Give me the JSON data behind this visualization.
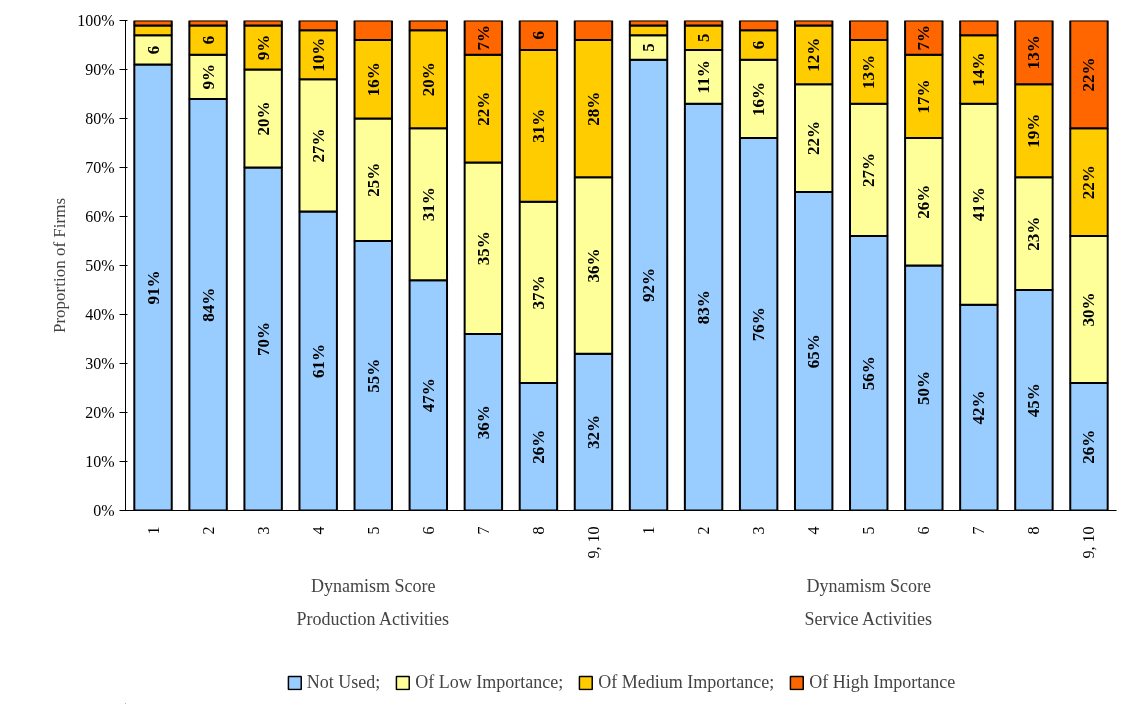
{
  "chart_data": {
    "type": "bar",
    "stacked": true,
    "ylabel": "Proportion of Firms",
    "legend": "bottom",
    "categories": [
      "1",
      "2",
      "3",
      "4",
      "5",
      "6",
      "7",
      "8",
      "9, 10",
      "1",
      "2",
      "3",
      "4",
      "5",
      "6",
      "7",
      "8",
      "9, 10"
    ],
    "annotations": [
      "Dynamism Score",
      "Production Activities",
      "Dynamism Score",
      "Service Activities"
    ],
    "ylim": [
      0,
      100
    ],
    "yticks": [
      {
        "value": 0,
        "label": "0%"
      },
      {
        "value": 10,
        "label": "10%"
      },
      {
        "value": 20,
        "label": "20%"
      },
      {
        "value": 30,
        "label": "30%"
      },
      {
        "value": 40,
        "label": "40%"
      },
      {
        "value": 50,
        "label": "50%"
      },
      {
        "value": 60,
        "label": "60%"
      },
      {
        "value": 70,
        "label": "70%"
      },
      {
        "value": 80,
        "label": "80%"
      },
      {
        "value": 90,
        "label": "90%"
      },
      {
        "value": 100,
        "label": "100%"
      }
    ],
    "series": [
      {
        "name": "Not Used;",
        "color": "#99ccff",
        "values": [
          91,
          84,
          70,
          61,
          55,
          47,
          36,
          26,
          32,
          92,
          83,
          76,
          65,
          56,
          50,
          42,
          45,
          26
        ],
        "value_labels": [
          "91%",
          "84%",
          "70%",
          "61%",
          "55%",
          "47%",
          "36%",
          "26%",
          "32%",
          "92%",
          "83%",
          "76%",
          "65%",
          "56%",
          "50%",
          "42%",
          "45%",
          "26%"
        ]
      },
      {
        "name": "Of Low Importance;",
        "color": "#ffff99",
        "values": [
          6,
          9,
          20,
          27,
          25,
          31,
          35,
          37,
          36,
          5,
          11,
          16,
          22,
          27,
          26,
          41,
          23,
          30
        ],
        "value_labels": [
          "6",
          "9%",
          "20%",
          "27%",
          "25%",
          "31%",
          "35%",
          "37%",
          "36%",
          "5",
          "11%",
          "16%",
          "22%",
          "27%",
          "26%",
          "41%",
          "23%",
          "30%"
        ]
      },
      {
        "name": "Of Medium Importance;",
        "color": "#ffcc00",
        "values": [
          2,
          6,
          9,
          10,
          16,
          20,
          22,
          31,
          28,
          2,
          5,
          6,
          12,
          13,
          17,
          14,
          19,
          22
        ],
        "value_labels": [
          null,
          "6",
          "9%",
          "10%",
          "16%",
          "20%",
          "22%",
          "31%",
          "28%",
          null,
          "5",
          "6",
          "12%",
          "13%",
          "17%",
          "14%",
          "19%",
          "22%"
        ]
      },
      {
        "name": "Of High Importance",
        "color": "#ff6600",
        "values": [
          1,
          1,
          1,
          2,
          4,
          2,
          7,
          6,
          4,
          1,
          1,
          2,
          1,
          4,
          7,
          3,
          13,
          22
        ],
        "value_labels": [
          null,
          null,
          null,
          null,
          null,
          null,
          "7%",
          "6",
          null,
          null,
          null,
          null,
          null,
          null,
          "7%",
          null,
          "13%",
          "22%"
        ]
      }
    ]
  }
}
